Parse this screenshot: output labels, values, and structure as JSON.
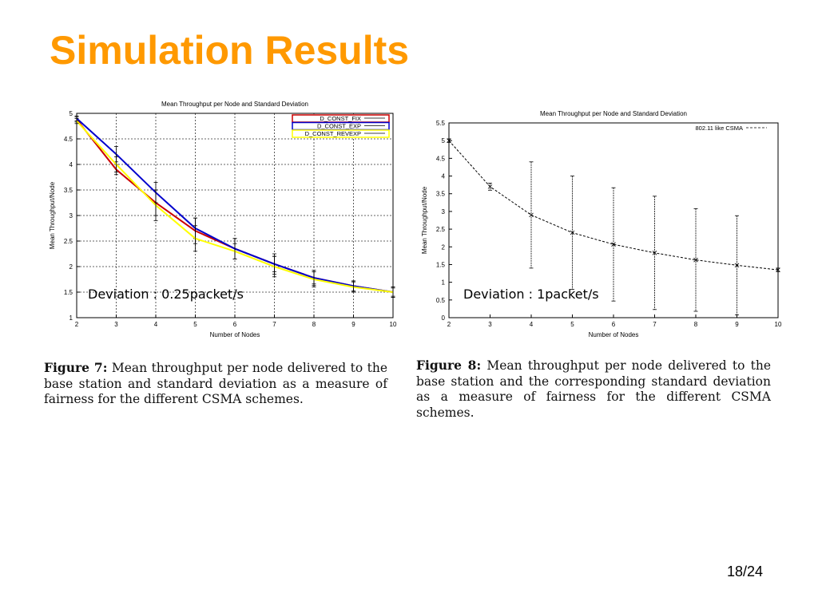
{
  "slide": {
    "title": "Simulation Results",
    "title_color": "#ff9900",
    "page_number": "18/24"
  },
  "figures": [
    {
      "annotation": "Deviation : 0.25packet/s",
      "caption_label": "Figure 7:",
      "caption_text": "Mean throughput per node delivered to the base station and standard deviation as a measure of fairness for the different CSMA schemes."
    },
    {
      "annotation": "Deviation : 1packet/s",
      "caption_label": "Figure 8:",
      "caption_text": "Mean throughput per node delivered to the base station and the corresponding standard deviation as a measure of fairness for the different CSMA schemes."
    }
  ],
  "chart_data": [
    {
      "type": "line",
      "title": "Mean Throughput per Node and Standard Deviation",
      "xlabel": "Number of Nodes",
      "ylabel": "Mean Throughput/Node",
      "xlim": [
        2,
        10
      ],
      "ylim": [
        1,
        5
      ],
      "xticks": [
        2,
        3,
        4,
        5,
        6,
        7,
        8,
        9,
        10
      ],
      "yticks": [
        1,
        1.5,
        2,
        2.5,
        3,
        3.5,
        4,
        4.5,
        5
      ],
      "grid": true,
      "legend_position": "top-right",
      "x": [
        2,
        3,
        4,
        5,
        6,
        7,
        8,
        9,
        10
      ],
      "series": [
        {
          "name": "D_CONST_FIX",
          "color": "#cc0000",
          "values": [
            4.88,
            3.9,
            3.25,
            2.7,
            2.35,
            2.05,
            1.78,
            1.62,
            1.5
          ],
          "errors": [
            0.05,
            0.1,
            0.25,
            0.25,
            0.2,
            0.2,
            0.15,
            0.1,
            0.1
          ]
        },
        {
          "name": "D_CONST_EXP",
          "color": "#0000cc",
          "values": [
            4.9,
            4.2,
            3.45,
            2.75,
            2.35,
            2.05,
            1.78,
            1.62,
            1.5
          ],
          "errors": [
            0.05,
            0.15,
            0.2,
            0.2,
            0.2,
            0.15,
            0.12,
            0.1,
            0.08
          ]
        },
        {
          "name": "D_CONST_REVEXP",
          "color": "#ffff00",
          "values": [
            4.85,
            4.0,
            3.2,
            2.55,
            2.3,
            2.0,
            1.75,
            1.6,
            1.5
          ],
          "errors": [
            0.05,
            0.15,
            0.3,
            0.25,
            0.15,
            0.2,
            0.15,
            0.1,
            0.1
          ]
        }
      ]
    },
    {
      "type": "line",
      "title": "Mean Throughput per Node and Standard Deviation",
      "xlabel": "Number of Nodes",
      "ylabel": "Mean Throughput/Node",
      "xlim": [
        2,
        10
      ],
      "ylim": [
        0,
        5.5
      ],
      "xticks": [
        2,
        3,
        4,
        5,
        6,
        7,
        8,
        9,
        10
      ],
      "yticks": [
        0,
        0.5,
        1,
        1.5,
        2,
        2.5,
        3,
        3.5,
        4,
        4.5,
        5,
        5.5
      ],
      "grid": false,
      "legend_position": "top-right",
      "x": [
        2,
        3,
        4,
        5,
        6,
        7,
        8,
        9,
        10
      ],
      "series": [
        {
          "name": "802.11 like CSMA",
          "color": "#000000",
          "values": [
            5.0,
            3.7,
            2.9,
            2.4,
            2.07,
            1.83,
            1.63,
            1.48,
            1.35
          ],
          "errors": [
            0.05,
            0.1,
            1.5,
            1.6,
            1.6,
            1.6,
            1.45,
            1.4,
            0.05
          ]
        }
      ]
    }
  ]
}
